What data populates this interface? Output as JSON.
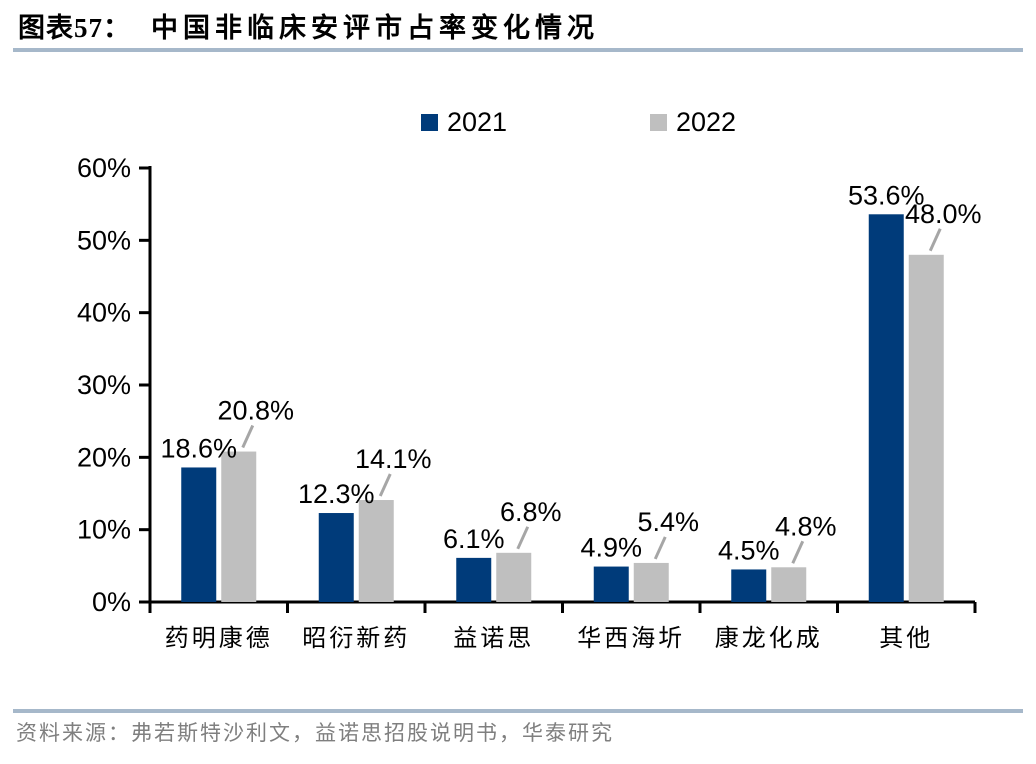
{
  "header": {
    "figure_label": "图表57：",
    "title": "中国非临床安评市占率变化情况"
  },
  "footer": {
    "source": "资料来源：弗若斯特沙利文，益诺思招股说明书，华泰研究"
  },
  "chart_data": {
    "type": "bar",
    "title": "中国非临床安评市占率变化情况",
    "categories": [
      "药明康德",
      "昭衍新药",
      "益诺思",
      "华西海圻",
      "康龙化成",
      "其他"
    ],
    "series": [
      {
        "name": "2021",
        "color": "#003b7a",
        "values": [
          18.6,
          12.3,
          6.1,
          4.9,
          4.5,
          53.6
        ],
        "labels": [
          "18.6%",
          "12.3%",
          "6.1%",
          "4.9%",
          "4.5%",
          "53.6%"
        ]
      },
      {
        "name": "2022",
        "color": "#bfbfbf",
        "values": [
          20.8,
          14.1,
          6.8,
          5.4,
          4.8,
          48.0
        ],
        "labels": [
          "20.8%",
          "14.1%",
          "6.8%",
          "5.4%",
          "4.8%",
          "48.0%"
        ]
      }
    ],
    "xlabel": "",
    "ylabel": "",
    "ylim": [
      0,
      60
    ],
    "ytick_step": 10,
    "ytick_labels": [
      "0%",
      "10%",
      "20%",
      "30%",
      "40%",
      "50%",
      "60%"
    ],
    "grid": false,
    "legend_position": "top",
    "value_labels": true,
    "leader_line_color": "#a6a6a6",
    "axis_color": "#000000"
  }
}
